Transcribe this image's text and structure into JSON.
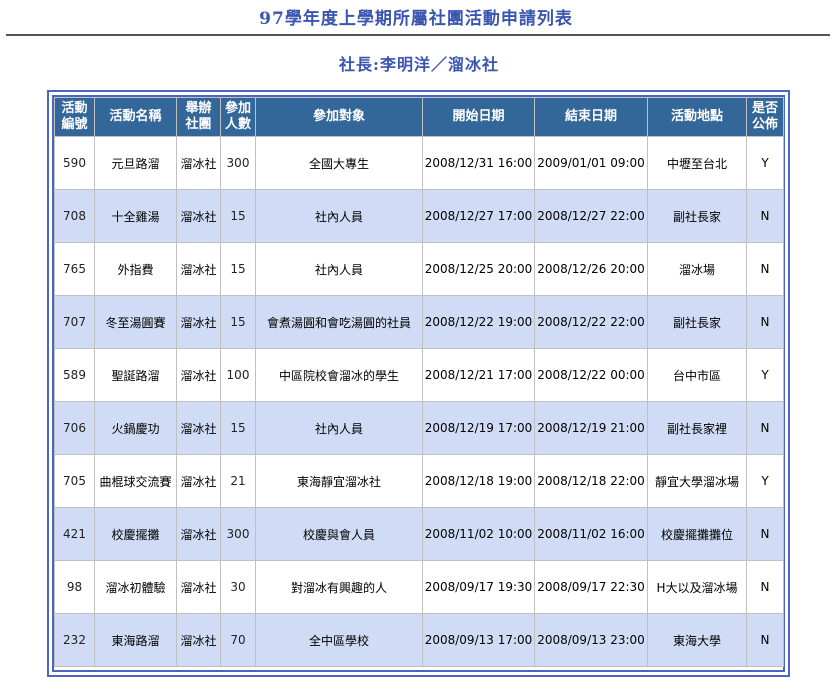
{
  "title": "97學年度上學期所屬社團活動申請列表",
  "subtitle": "社長:李明洋／溜冰社",
  "columns": [
    "活動編號",
    "活動名稱",
    "舉辦社團",
    "參加人數",
    "參加對象",
    "開始日期",
    "結束日期",
    "活動地點",
    "是否公佈"
  ],
  "rows": [
    [
      "590",
      "元旦路溜",
      "溜冰社",
      "300",
      "全國大專生",
      "2008/12/31 16:00",
      "2009/01/01 09:00",
      "中壢至台北",
      "Y"
    ],
    [
      "708",
      "十全雞湯",
      "溜冰社",
      "15",
      "社內人員",
      "2008/12/27 17:00",
      "2008/12/27 22:00",
      "副社長家",
      "N"
    ],
    [
      "765",
      "外指費",
      "溜冰社",
      "15",
      "社內人員",
      "2008/12/25 20:00",
      "2008/12/26 20:00",
      "溜冰場",
      "N"
    ],
    [
      "707",
      "冬至湯圓賽",
      "溜冰社",
      "15",
      "會煮湯圓和會吃湯圓的社員",
      "2008/12/22 19:00",
      "2008/12/22 22:00",
      "副社長家",
      "N"
    ],
    [
      "589",
      "聖誕路溜",
      "溜冰社",
      "100",
      "中區院校會溜冰的學生",
      "2008/12/21 17:00",
      "2008/12/22 00:00",
      "台中市區",
      "Y"
    ],
    [
      "706",
      "火鍋慶功",
      "溜冰社",
      "15",
      "社內人員",
      "2008/12/19 17:00",
      "2008/12/19 21:00",
      "副社長家裡",
      "N"
    ],
    [
      "705",
      "曲棍球交流賽",
      "溜冰社",
      "21",
      "東海靜宜溜冰社",
      "2008/12/18 19:00",
      "2008/12/18 22:00",
      "靜宜大學溜冰場",
      "Y"
    ],
    [
      "421",
      "校慶擺攤",
      "溜冰社",
      "300",
      "校慶與會人員",
      "2008/11/02 10:00",
      "2008/11/02 16:00",
      "校慶擺攤攤位",
      "N"
    ],
    [
      "98",
      "溜冰初體驗",
      "溜冰社",
      "30",
      "對溜冰有興趣的人",
      "2008/09/17 19:30",
      "2008/09/17 22:30",
      "H大以及溜冰場",
      "N"
    ],
    [
      "232",
      "東海路溜",
      "溜冰社",
      "70",
      "全中區學校",
      "2008/09/13 17:00",
      "2008/09/13 23:00",
      "東海大學",
      "N"
    ]
  ],
  "colors": {
    "accent": "#3a55b0",
    "header_bg": "#336699",
    "alt_row": "#d0dcf5"
  }
}
